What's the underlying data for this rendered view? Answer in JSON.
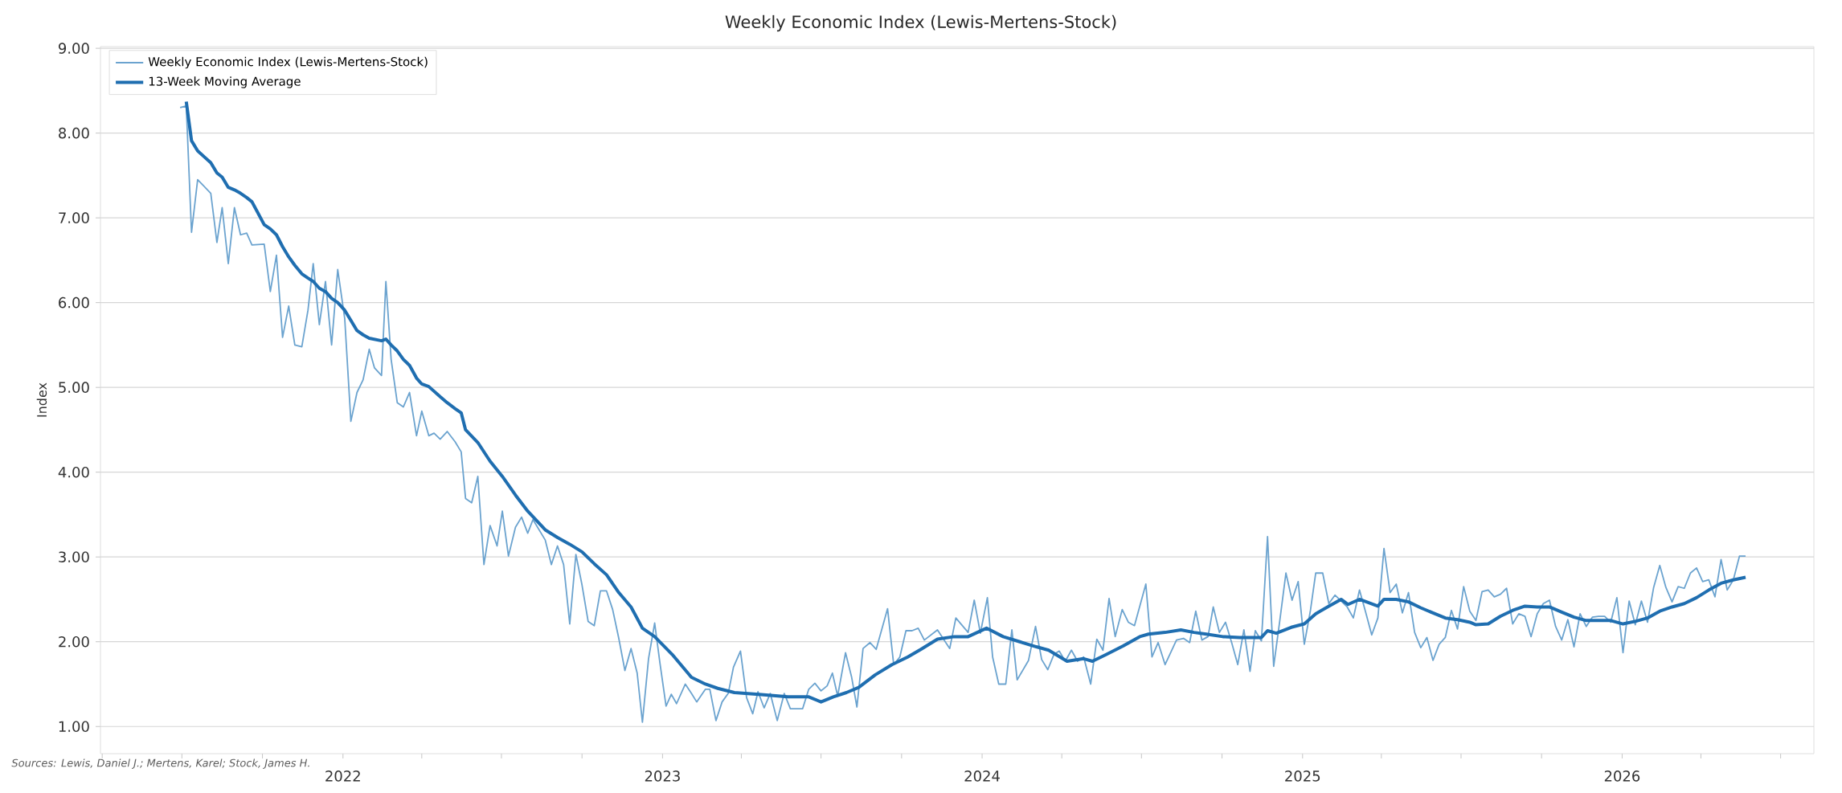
{
  "chart_data": {
    "type": "line",
    "title": "Weekly Economic Index (Lewis-Mertens-Stock)",
    "ylabel": "Index",
    "annotations": [
      "Sources: Lewis, Daniel J.; Mertens, Karel; Stock, James H."
    ],
    "xlim": [
      "2021-03-30",
      "2026-08-08"
    ],
    "ylim": [
      0.68,
      9.02
    ],
    "xticks": [
      {
        "value": "2021-04-01",
        "label": null
      },
      {
        "value": "2021-07-01",
        "label": null
      },
      {
        "value": "2021-10-01",
        "label": null
      },
      {
        "value": "2022-01-01",
        "label": "2022"
      },
      {
        "value": "2022-04-01",
        "label": null
      },
      {
        "value": "2022-07-01",
        "label": null
      },
      {
        "value": "2022-10-01",
        "label": null
      },
      {
        "value": "2023-01-01",
        "label": "2023"
      },
      {
        "value": "2023-04-01",
        "label": null
      },
      {
        "value": "2023-07-01",
        "label": null
      },
      {
        "value": "2023-10-01",
        "label": null
      },
      {
        "value": "2024-01-01",
        "label": "2024"
      },
      {
        "value": "2024-04-01",
        "label": null
      },
      {
        "value": "2024-07-01",
        "label": null
      },
      {
        "value": "2024-10-01",
        "label": null
      },
      {
        "value": "2025-01-01",
        "label": "2025"
      },
      {
        "value": "2025-04-01",
        "label": null
      },
      {
        "value": "2025-07-01",
        "label": null
      },
      {
        "value": "2025-10-01",
        "label": null
      },
      {
        "value": "2026-01-01",
        "label": "2026"
      },
      {
        "value": "2026-04-01",
        "label": null
      },
      {
        "value": "2026-07-01",
        "label": null
      }
    ],
    "yticks": [
      {
        "value": 1,
        "label": "1.00"
      },
      {
        "value": 2,
        "label": "2.00"
      },
      {
        "value": 3,
        "label": "3.00"
      },
      {
        "value": 4,
        "label": "4.00"
      },
      {
        "value": 5,
        "label": "5.00"
      },
      {
        "value": 6,
        "label": "6.00"
      },
      {
        "value": 7,
        "label": "7.00"
      },
      {
        "value": 8,
        "label": "8.00"
      },
      {
        "value": 9,
        "label": "9.00"
      }
    ],
    "grid": "y",
    "legend": "top left",
    "line_style": "solid",
    "series": [
      {
        "name": "Weekly Economic Index (Lewis-Mertens-Stock)",
        "color": "#6ba3cf",
        "x": [
          "2021-06-29",
          "2021-07-06",
          "2021-07-12",
          "2021-07-19",
          "2021-08-03",
          "2021-08-10",
          "2021-08-16",
          "2021-08-23",
          "2021-08-30",
          "2021-09-06",
          "2021-09-13",
          "2021-09-19",
          "2021-10-03",
          "2021-10-10",
          "2021-10-17",
          "2021-10-24",
          "2021-10-31",
          "2021-11-07",
          "2021-11-15",
          "2021-11-22",
          "2021-11-28",
          "2021-12-05",
          "2021-12-12",
          "2021-12-19",
          "2021-12-26",
          "2022-01-03",
          "2022-01-10",
          "2022-01-17",
          "2022-01-24",
          "2022-01-31",
          "2022-02-06",
          "2022-02-14",
          "2022-02-19",
          "2022-02-25",
          "2022-03-04",
          "2022-03-11",
          "2022-03-18",
          "2022-03-26",
          "2022-04-01",
          "2022-04-09",
          "2022-04-15",
          "2022-04-22",
          "2022-04-30",
          "2022-05-09",
          "2022-05-16",
          "2022-05-21",
          "2022-05-28",
          "2022-06-04",
          "2022-06-11",
          "2022-06-18",
          "2022-06-26",
          "2022-07-02",
          "2022-07-09",
          "2022-07-17",
          "2022-07-24",
          "2022-07-31",
          "2022-08-06",
          "2022-08-20",
          "2022-08-27",
          "2022-09-03",
          "2022-09-10",
          "2022-09-17",
          "2022-09-24",
          "2022-10-01",
          "2022-10-08",
          "2022-10-15",
          "2022-10-22",
          "2022-10-29",
          "2022-11-05",
          "2022-11-12",
          "2022-11-19",
          "2022-11-26",
          "2022-12-03",
          "2022-12-09",
          "2022-12-16",
          "2022-12-23",
          "2022-12-29",
          "2023-01-05",
          "2023-01-11",
          "2023-01-17",
          "2023-01-27",
          "2023-02-03",
          "2023-02-09",
          "2023-02-19",
          "2023-02-24",
          "2023-03-03",
          "2023-03-10",
          "2023-03-17",
          "2023-03-23",
          "2023-03-31",
          "2023-04-07",
          "2023-04-14",
          "2023-04-20",
          "2023-04-27",
          "2023-05-04",
          "2023-05-12",
          "2023-05-20",
          "2023-05-27",
          "2023-06-10",
          "2023-06-17",
          "2023-06-24",
          "2023-07-01",
          "2023-07-08",
          "2023-07-14",
          "2023-07-20",
          "2023-07-29",
          "2023-08-05",
          "2023-08-11",
          "2023-08-18",
          "2023-08-26",
          "2023-09-02",
          "2023-09-15",
          "2023-09-22",
          "2023-09-29",
          "2023-10-06",
          "2023-10-13",
          "2023-10-20",
          "2023-10-27",
          "2023-11-11",
          "2023-11-25",
          "2023-12-02",
          "2023-12-16",
          "2023-12-23",
          "2023-12-30",
          "2024-01-07",
          "2024-01-13",
          "2024-01-20",
          "2024-01-28",
          "2024-02-04",
          "2024-02-10",
          "2024-02-23",
          "2024-03-02",
          "2024-03-09",
          "2024-03-16",
          "2024-03-23",
          "2024-03-29",
          "2024-04-05",
          "2024-04-12",
          "2024-04-19",
          "2024-04-26",
          "2024-05-04",
          "2024-05-11",
          "2024-05-18",
          "2024-05-25",
          "2024-06-01",
          "2024-06-09",
          "2024-06-16",
          "2024-06-23",
          "2024-07-06",
          "2024-07-13",
          "2024-07-20",
          "2024-07-28",
          "2024-08-10",
          "2024-08-18",
          "2024-08-25",
          "2024-09-01",
          "2024-09-08",
          "2024-09-15",
          "2024-09-21",
          "2024-09-28",
          "2024-10-05",
          "2024-10-12",
          "2024-10-19",
          "2024-10-26",
          "2024-11-02",
          "2024-11-08",
          "2024-11-15",
          "2024-11-22",
          "2024-11-29",
          "2024-12-06",
          "2024-12-13",
          "2024-12-20",
          "2024-12-27",
          "2025-01-03",
          "2025-01-10",
          "2025-01-16",
          "2025-01-24",
          "2025-01-31",
          "2025-02-07",
          "2025-02-21",
          "2025-02-28",
          "2025-03-07",
          "2025-03-14",
          "2025-03-21",
          "2025-03-28",
          "2025-04-04",
          "2025-04-11",
          "2025-04-18",
          "2025-04-25",
          "2025-05-02",
          "2025-05-09",
          "2025-05-16",
          "2025-05-23",
          "2025-05-30",
          "2025-06-06",
          "2025-06-13",
          "2025-06-20",
          "2025-06-27",
          "2025-07-04",
          "2025-07-11",
          "2025-07-18",
          "2025-07-25",
          "2025-08-01",
          "2025-08-08",
          "2025-08-15",
          "2025-08-22",
          "2025-08-29",
          "2025-09-05",
          "2025-09-12",
          "2025-09-19",
          "2025-09-26",
          "2025-10-03",
          "2025-10-10",
          "2025-10-17",
          "2025-10-24",
          "2025-10-31",
          "2025-11-07",
          "2025-11-14",
          "2025-11-21",
          "2025-11-28",
          "2025-12-05",
          "2025-12-12",
          "2025-12-19",
          "2025-12-26",
          "2026-01-02",
          "2026-01-09",
          "2026-01-16",
          "2026-01-23",
          "2026-01-30",
          "2026-02-06",
          "2026-02-13",
          "2026-02-20",
          "2026-02-27",
          "2026-03-06",
          "2026-03-13",
          "2026-03-20",
          "2026-03-27",
          "2026-04-03",
          "2026-04-10",
          "2026-04-17",
          "2026-04-24",
          "2026-05-01",
          "2026-05-08",
          "2026-05-15",
          "2026-05-22"
        ],
        "values": [
          8.3,
          8.32,
          6.83,
          7.45,
          7.29,
          6.71,
          7.12,
          6.46,
          7.12,
          6.8,
          6.82,
          6.68,
          6.69,
          6.13,
          6.56,
          5.59,
          5.96,
          5.5,
          5.48,
          5.91,
          6.46,
          5.74,
          6.25,
          5.5,
          6.39,
          5.81,
          4.6,
          4.94,
          5.09,
          5.45,
          5.23,
          5.14,
          6.25,
          5.33,
          4.82,
          4.77,
          4.94,
          4.43,
          4.72,
          4.43,
          4.46,
          4.39,
          4.48,
          4.36,
          4.24,
          3.69,
          3.64,
          3.95,
          2.91,
          3.37,
          3.13,
          3.54,
          3.01,
          3.35,
          3.47,
          3.28,
          3.44,
          3.2,
          2.91,
          3.13,
          2.91,
          2.21,
          3.03,
          2.67,
          2.24,
          2.19,
          2.6,
          2.6,
          2.38,
          2.04,
          1.66,
          1.92,
          1.63,
          1.05,
          1.8,
          2.22,
          1.75,
          1.24,
          1.38,
          1.27,
          1.5,
          1.39,
          1.29,
          1.44,
          1.44,
          1.07,
          1.29,
          1.39,
          1.7,
          1.89,
          1.34,
          1.15,
          1.41,
          1.22,
          1.39,
          1.07,
          1.39,
          1.21,
          1.21,
          1.44,
          1.51,
          1.42,
          1.48,
          1.63,
          1.36,
          1.87,
          1.58,
          1.23,
          1.92,
          1.99,
          1.91,
          2.39,
          1.73,
          1.82,
          2.13,
          2.13,
          2.16,
          2.02,
          2.14,
          1.92,
          2.28,
          2.11,
          2.49,
          2.1,
          2.52,
          1.82,
          1.5,
          1.5,
          2.14,
          1.55,
          1.78,
          2.18,
          1.79,
          1.67,
          1.85,
          1.89,
          1.77,
          1.9,
          1.77,
          1.82,
          1.5,
          2.03,
          1.9,
          2.51,
          2.06,
          2.38,
          2.23,
          2.19,
          2.68,
          1.82,
          1.99,
          1.73,
          2.02,
          2.04,
          1.99,
          2.36,
          2.02,
          2.06,
          2.41,
          2.11,
          2.23,
          1.99,
          1.73,
          2.14,
          1.65,
          2.13,
          2.01,
          3.24,
          1.71,
          2.25,
          2.81,
          2.49,
          2.71,
          1.97,
          2.37,
          2.81,
          2.81,
          2.45,
          2.55,
          2.41,
          2.28,
          2.61,
          2.35,
          2.08,
          2.28,
          3.1,
          2.58,
          2.68,
          2.34,
          2.58,
          2.11,
          1.93,
          2.05,
          1.78,
          1.97,
          2.05,
          2.37,
          2.15,
          2.65,
          2.36,
          2.25,
          2.59,
          2.61,
          2.53,
          2.56,
          2.63,
          2.21,
          2.33,
          2.3,
          2.06,
          2.33,
          2.45,
          2.49,
          2.18,
          2.02,
          2.26,
          1.94,
          2.33,
          2.18,
          2.29,
          2.3,
          2.3,
          2.23,
          2.52,
          1.87,
          2.48,
          2.2,
          2.48,
          2.23,
          2.64,
          2.9,
          2.64,
          2.47,
          2.65,
          2.63,
          2.81,
          2.87,
          2.71,
          2.73,
          2.53,
          2.97,
          2.61,
          2.73,
          3.01,
          3.01
        ]
      },
      {
        "name": "13-Week Moving Average",
        "color": "#1f6eb0",
        "x": [
          "2021-07-06",
          "2021-07-12",
          "2021-07-19",
          "2021-08-03",
          "2021-08-10",
          "2021-08-16",
          "2021-08-23",
          "2021-08-30",
          "2021-09-06",
          "2021-09-13",
          "2021-09-19",
          "2021-10-03",
          "2021-10-10",
          "2021-10-17",
          "2021-10-24",
          "2021-10-31",
          "2021-11-07",
          "2021-11-15",
          "2021-11-22",
          "2021-11-28",
          "2021-12-05",
          "2021-12-12",
          "2021-12-19",
          "2021-12-26",
          "2022-01-03",
          "2022-01-10",
          "2022-01-17",
          "2022-01-24",
          "2022-01-31",
          "2022-02-14",
          "2022-02-19",
          "2022-02-25",
          "2022-03-04",
          "2022-03-11",
          "2022-03-18",
          "2022-03-26",
          "2022-04-01",
          "2022-04-09",
          "2022-04-22",
          "2022-04-30",
          "2022-05-09",
          "2022-05-16",
          "2022-05-21",
          "2022-06-04",
          "2022-06-18",
          "2022-07-02",
          "2022-07-17",
          "2022-07-31",
          "2022-08-20",
          "2022-09-03",
          "2022-09-17",
          "2022-10-01",
          "2022-10-15",
          "2022-10-29",
          "2022-11-12",
          "2022-11-26",
          "2022-12-09",
          "2022-12-23",
          "2023-01-12",
          "2023-02-03",
          "2023-02-19",
          "2023-03-05",
          "2023-03-24",
          "2023-04-21",
          "2023-05-24",
          "2023-06-17",
          "2023-07-01",
          "2023-07-15",
          "2023-07-30",
          "2023-08-13",
          "2023-09-01",
          "2023-09-20",
          "2023-10-08",
          "2023-10-23",
          "2023-11-11",
          "2023-11-30",
          "2023-12-16",
          "2024-01-06",
          "2024-01-25",
          "2024-02-13",
          "2024-03-03",
          "2024-03-17",
          "2024-04-07",
          "2024-04-26",
          "2024-05-06",
          "2024-05-22",
          "2024-06-10",
          "2024-06-29",
          "2024-07-09",
          "2024-07-28",
          "2024-08-15",
          "2024-08-30",
          "2024-09-13",
          "2024-10-02",
          "2024-10-21",
          "2024-11-01",
          "2024-11-15",
          "2024-11-22",
          "2024-12-02",
          "2024-12-19",
          "2025-01-03",
          "2025-01-16",
          "2025-01-31",
          "2025-02-14",
          "2025-02-22",
          "2025-03-07",
          "2025-03-28",
          "2025-04-04",
          "2025-04-18",
          "2025-05-02",
          "2025-05-16",
          "2025-05-30",
          "2025-06-13",
          "2025-06-27",
          "2025-07-11",
          "2025-07-18",
          "2025-08-01",
          "2025-08-15",
          "2025-08-29",
          "2025-09-12",
          "2025-09-26",
          "2025-10-10",
          "2025-10-24",
          "2025-11-07",
          "2025-11-21",
          "2025-12-05",
          "2025-12-19",
          "2026-01-02",
          "2026-01-16",
          "2026-01-30",
          "2026-02-13",
          "2026-02-27",
          "2026-03-13",
          "2026-03-27",
          "2026-04-10",
          "2026-04-24",
          "2026-05-08",
          "2026-05-22"
        ],
        "values": [
          8.37,
          7.91,
          7.79,
          7.65,
          7.53,
          7.48,
          7.36,
          7.33,
          7.29,
          7.24,
          7.19,
          6.92,
          6.87,
          6.8,
          6.66,
          6.54,
          6.44,
          6.34,
          6.29,
          6.25,
          6.17,
          6.13,
          6.05,
          6.0,
          5.91,
          5.79,
          5.67,
          5.62,
          5.58,
          5.55,
          5.57,
          5.5,
          5.43,
          5.33,
          5.26,
          5.11,
          5.04,
          5.01,
          4.89,
          4.82,
          4.75,
          4.7,
          4.5,
          4.35,
          4.13,
          3.95,
          3.73,
          3.54,
          3.32,
          3.23,
          3.15,
          3.06,
          2.92,
          2.79,
          2.58,
          2.41,
          2.16,
          2.06,
          1.85,
          1.58,
          1.5,
          1.45,
          1.4,
          1.38,
          1.35,
          1.35,
          1.29,
          1.35,
          1.4,
          1.46,
          1.61,
          1.73,
          1.82,
          1.91,
          2.03,
          2.06,
          2.06,
          2.16,
          2.06,
          2.0,
          1.94,
          1.9,
          1.77,
          1.8,
          1.77,
          1.85,
          1.95,
          2.06,
          2.09,
          2.11,
          2.14,
          2.11,
          2.09,
          2.06,
          2.05,
          2.05,
          2.05,
          2.13,
          2.1,
          2.17,
          2.21,
          2.33,
          2.42,
          2.5,
          2.44,
          2.5,
          2.42,
          2.5,
          2.5,
          2.47,
          2.4,
          2.34,
          2.28,
          2.26,
          2.23,
          2.2,
          2.21,
          2.3,
          2.37,
          2.42,
          2.41,
          2.41,
          2.35,
          2.29,
          2.25,
          2.25,
          2.25,
          2.21,
          2.24,
          2.28,
          2.36,
          2.41,
          2.45,
          2.52,
          2.61,
          2.69,
          2.73,
          2.76
        ]
      }
    ]
  }
}
